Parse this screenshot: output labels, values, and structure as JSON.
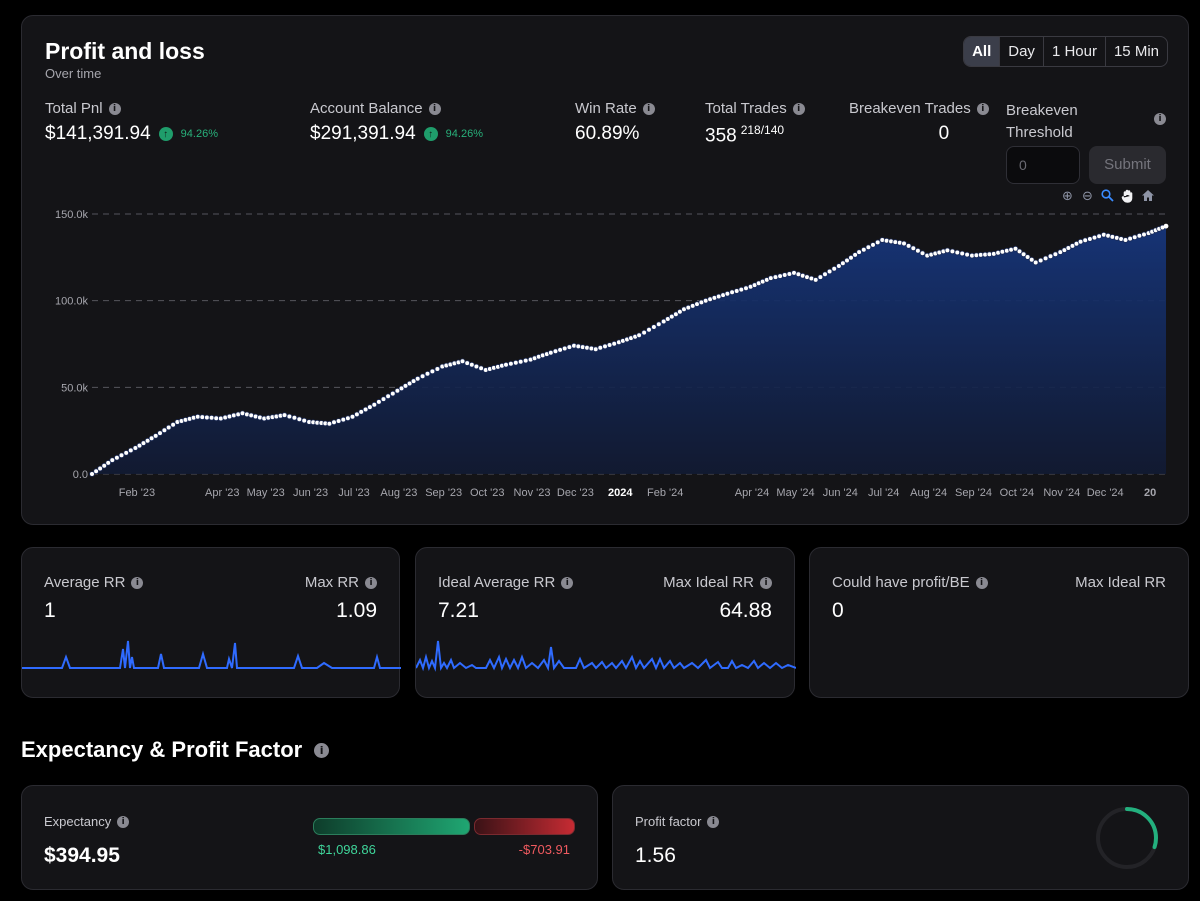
{
  "pnl": {
    "title": "Profit and loss",
    "subtitle": "Over time",
    "timeframes": [
      "All",
      "Day",
      "1 Hour",
      "15 Min"
    ],
    "active_timeframe": "All",
    "stats": {
      "total_pnl": {
        "label": "Total Pnl",
        "value": "$141,391.94",
        "change": "94.26%"
      },
      "account_balance": {
        "label": "Account Balance",
        "value": "$291,391.94",
        "change": "94.26%"
      },
      "win_rate": {
        "label": "Win Rate",
        "value": "60.89%"
      },
      "total_trades": {
        "label": "Total Trades",
        "value": "358",
        "split": "218/140"
      },
      "breakeven_trades": {
        "label": "Breakeven Trades",
        "value": "0"
      },
      "breakeven_threshold": {
        "label": "Breakeven Threshold",
        "input_placeholder": "0",
        "submit_label": "Submit"
      }
    },
    "toolbar_icons": [
      "zoom-in-icon",
      "zoom-out-icon",
      "zoom-select-icon",
      "pan-hand-icon",
      "home-reset-icon"
    ]
  },
  "chart_data": {
    "type": "area",
    "x_ticks": [
      "Feb '23",
      "Apr '23",
      "May '23",
      "Jun '23",
      "Jul '23",
      "Aug '23",
      "Sep '23",
      "Oct '23",
      "Nov '23",
      "Dec '23",
      "2024",
      "Feb '24",
      "Apr '24",
      "May '24",
      "Jun '24",
      "Jul '24",
      "Aug '24",
      "Sep '24",
      "Oct '24",
      "Nov '24",
      "Dec '24",
      "20"
    ],
    "y_ticks": [
      "0.0",
      "50.0k",
      "100.0k",
      "150.0k"
    ],
    "ylim": [
      0,
      150000
    ],
    "grid": true,
    "x_range": [
      "2023-01-01",
      "2025-01-12"
    ],
    "series": [
      {
        "x": [
          "2023-01-01",
          "2023-01-15",
          "2023-01-31",
          "2023-02-14",
          "2023-03-01",
          "2023-03-15",
          "2023-03-31",
          "2023-04-15",
          "2023-04-30",
          "2023-05-14",
          "2023-05-31",
          "2023-06-14",
          "2023-06-30",
          "2023-07-15",
          "2023-07-31",
          "2023-08-14",
          "2023-08-31",
          "2023-09-14",
          "2023-09-30",
          "2023-10-14",
          "2023-10-31",
          "2023-11-14",
          "2023-11-30",
          "2023-12-15",
          "2023-12-31",
          "2024-01-14",
          "2024-01-31",
          "2024-02-14",
          "2024-02-29",
          "2024-03-15",
          "2024-03-31",
          "2024-04-14",
          "2024-04-30",
          "2024-05-15",
          "2024-05-31",
          "2024-06-14",
          "2024-06-30",
          "2024-07-15",
          "2024-07-31",
          "2024-08-14",
          "2024-08-31",
          "2024-09-15",
          "2024-09-30",
          "2024-10-14",
          "2024-10-31",
          "2024-11-14",
          "2024-11-30",
          "2024-12-15",
          "2024-12-31",
          "2025-01-12"
        ],
        "y": [
          0,
          8000,
          15000,
          22000,
          30000,
          33000,
          32000,
          35000,
          32000,
          34000,
          30000,
          29000,
          33000,
          40000,
          48000,
          55000,
          62000,
          65000,
          60000,
          63000,
          66000,
          70000,
          74000,
          72000,
          76000,
          80000,
          88000,
          95000,
          100000,
          104000,
          108000,
          113000,
          116000,
          112000,
          120000,
          128000,
          135000,
          133000,
          126000,
          129000,
          126000,
          127000,
          130000,
          122000,
          128000,
          134000,
          138000,
          135000,
          139000,
          143000
        ]
      }
    ]
  },
  "rr": {
    "average_rr": {
      "label": "Average RR",
      "value": "1"
    },
    "max_rr": {
      "label": "Max RR",
      "value": "1.09"
    },
    "ideal_average_rr": {
      "label": "Ideal Average RR",
      "value": "7.21"
    },
    "max_ideal_rr": {
      "label": "Max Ideal RR",
      "value": "64.88"
    },
    "could_have_profit": {
      "label": "Could have profit/BE",
      "value": "0"
    },
    "max_ideal_rr_2": {
      "label": "Max Ideal RR"
    }
  },
  "expectancy_section": {
    "title": "Expectancy & Profit Factor",
    "expectancy": {
      "label": "Expectancy",
      "value": "$394.95",
      "positive": "$1,098.86",
      "negative": "-$703.91"
    },
    "profit_factor": {
      "label": "Profit factor",
      "value": "1.56",
      "ring_fraction": 0.3
    }
  },
  "colors": {
    "accent_blue": "#2f6bff",
    "positive": "#28b07a",
    "negative": "#ef5a5f",
    "card_bg": "#141417"
  }
}
